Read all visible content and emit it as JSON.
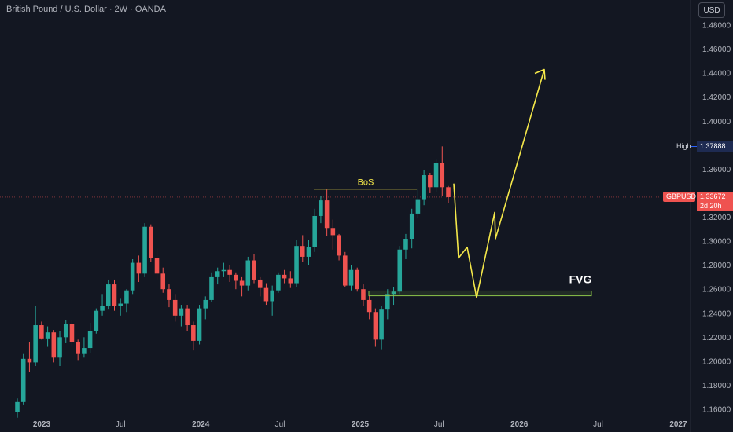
{
  "header": {
    "title": "British Pound / U.S. Dollar · 2W · OANDA",
    "currency_button": "USD"
  },
  "markers": {
    "high_label": "High",
    "high_value": "1.37888",
    "symbol_label": "GBPUSD",
    "last_price": "1.33672",
    "countdown": "2d 20h"
  },
  "annotations": {
    "bos": "BoS",
    "fvg": "FVG"
  },
  "colors": {
    "background": "#131722",
    "up": "#26a69a",
    "down": "#ef5350",
    "projection": "#f5e84a",
    "fvg_box": "#8bc34a",
    "high_tag": "#1e2b52",
    "price_tag": "#ef5350"
  },
  "chart_data": {
    "type": "candlestick",
    "title": "British Pound / U.S. Dollar · 2W · OANDA",
    "y_axis": {
      "ticks": [
        "1.48000",
        "1.46000",
        "1.44000",
        "1.42000",
        "1.40000",
        "1.36000",
        "1.32000",
        "1.30000",
        "1.28000",
        "1.26000",
        "1.24000",
        "1.22000",
        "1.20000",
        "1.18000",
        "1.16000"
      ],
      "range": [
        1.155,
        1.49
      ],
      "side": "right"
    },
    "x_axis": {
      "ticks": [
        {
          "label": "2023",
          "date": "2023-01-01"
        },
        {
          "label": "Jul",
          "date": "2023-07-01"
        },
        {
          "label": "2024",
          "date": "2024-01-01"
        },
        {
          "label": "Jul",
          "date": "2024-07-01"
        },
        {
          "label": "2025",
          "date": "2025-01-01"
        },
        {
          "label": "Jul",
          "date": "2025-07-01"
        },
        {
          "label": "2026",
          "date": "2026-01-01"
        },
        {
          "label": "Jul",
          "date": "2026-07-01"
        },
        {
          "label": "2027",
          "date": "2027-01-01"
        }
      ]
    },
    "candles": [
      [
        1.158,
        1.169,
        1.153,
        1.166
      ],
      [
        1.166,
        1.206,
        1.164,
        1.202
      ],
      [
        1.202,
        1.216,
        1.191,
        1.199
      ],
      [
        1.199,
        1.246,
        1.196,
        1.23
      ],
      [
        1.23,
        1.233,
        1.218,
        1.219
      ],
      [
        1.219,
        1.229,
        1.212,
        1.224
      ],
      [
        1.224,
        1.226,
        1.199,
        1.203
      ],
      [
        1.203,
        1.225,
        1.196,
        1.22
      ],
      [
        1.22,
        1.234,
        1.215,
        1.231
      ],
      [
        1.231,
        1.234,
        1.212,
        1.216
      ],
      [
        1.216,
        1.218,
        1.201,
        1.206
      ],
      [
        1.206,
        1.22,
        1.203,
        1.211
      ],
      [
        1.211,
        1.232,
        1.207,
        1.225
      ],
      [
        1.225,
        1.244,
        1.223,
        1.242
      ],
      [
        1.242,
        1.256,
        1.238,
        1.246
      ],
      [
        1.246,
        1.268,
        1.243,
        1.264
      ],
      [
        1.264,
        1.268,
        1.242,
        1.246
      ],
      [
        1.246,
        1.252,
        1.238,
        1.248
      ],
      [
        1.248,
        1.26,
        1.241,
        1.259
      ],
      [
        1.259,
        1.285,
        1.256,
        1.282
      ],
      [
        1.282,
        1.288,
        1.266,
        1.273
      ],
      [
        1.273,
        1.315,
        1.27,
        1.312
      ],
      [
        1.312,
        1.314,
        1.283,
        1.286
      ],
      [
        1.286,
        1.294,
        1.268,
        1.273
      ],
      [
        1.273,
        1.278,
        1.257,
        1.26
      ],
      [
        1.26,
        1.264,
        1.245,
        1.251
      ],
      [
        1.251,
        1.256,
        1.233,
        1.238
      ],
      [
        1.238,
        1.247,
        1.229,
        1.244
      ],
      [
        1.244,
        1.247,
        1.225,
        1.23
      ],
      [
        1.23,
        1.233,
        1.209,
        1.217
      ],
      [
        1.217,
        1.247,
        1.214,
        1.244
      ],
      [
        1.244,
        1.254,
        1.235,
        1.251
      ],
      [
        1.251,
        1.274,
        1.249,
        1.27
      ],
      [
        1.27,
        1.278,
        1.264,
        1.275
      ],
      [
        1.275,
        1.282,
        1.27,
        1.276
      ],
      [
        1.276,
        1.28,
        1.266,
        1.272
      ],
      [
        1.272,
        1.274,
        1.26,
        1.267
      ],
      [
        1.267,
        1.27,
        1.254,
        1.263
      ],
      [
        1.263,
        1.287,
        1.259,
        1.284
      ],
      [
        1.284,
        1.289,
        1.265,
        1.268
      ],
      [
        1.268,
        1.27,
        1.254,
        1.261
      ],
      [
        1.261,
        1.265,
        1.247,
        1.25
      ],
      [
        1.25,
        1.263,
        1.238,
        1.259
      ],
      [
        1.259,
        1.274,
        1.257,
        1.272
      ],
      [
        1.272,
        1.276,
        1.265,
        1.269
      ],
      [
        1.269,
        1.275,
        1.261,
        1.265
      ],
      [
        1.265,
        1.301,
        1.262,
        1.296
      ],
      [
        1.296,
        1.305,
        1.283,
        1.287
      ],
      [
        1.287,
        1.301,
        1.28,
        1.295
      ],
      [
        1.295,
        1.327,
        1.291,
        1.321
      ],
      [
        1.321,
        1.338,
        1.315,
        1.334
      ],
      [
        1.334,
        1.343,
        1.304,
        1.311
      ],
      [
        1.311,
        1.318,
        1.293,
        1.305
      ],
      [
        1.305,
        1.306,
        1.284,
        1.288
      ],
      [
        1.288,
        1.291,
        1.262,
        1.263
      ],
      [
        1.263,
        1.28,
        1.259,
        1.276
      ],
      [
        1.276,
        1.278,
        1.258,
        1.26
      ],
      [
        1.26,
        1.264,
        1.246,
        1.251
      ],
      [
        1.251,
        1.255,
        1.235,
        1.241
      ],
      [
        1.241,
        1.244,
        1.212,
        1.218
      ],
      [
        1.218,
        1.246,
        1.21,
        1.243
      ],
      [
        1.243,
        1.26,
        1.235,
        1.256
      ],
      [
        1.256,
        1.262,
        1.247,
        1.258
      ],
      [
        1.258,
        1.296,
        1.256,
        1.293
      ],
      [
        1.293,
        1.306,
        1.285,
        1.302
      ],
      [
        1.302,
        1.327,
        1.294,
        1.323
      ],
      [
        1.323,
        1.344,
        1.319,
        1.335
      ],
      [
        1.335,
        1.359,
        1.33,
        1.355
      ],
      [
        1.355,
        1.357,
        1.34,
        1.345
      ],
      [
        1.345,
        1.368,
        1.341,
        1.365
      ],
      [
        1.365,
        1.379,
        1.338,
        1.345
      ],
      [
        1.345,
        1.346,
        1.332,
        1.3367
      ]
    ],
    "last_price": 1.33672,
    "high": 1.37888,
    "annotations": [
      {
        "label": "BoS",
        "type": "horizontal-line",
        "price": 1.3434
      },
      {
        "label": "FVG",
        "type": "zone",
        "from": 1.2545,
        "to": 1.2585
      },
      {
        "type": "projection-path",
        "prices": [
          1.348,
          1.286,
          1.295,
          1.253,
          1.324,
          1.302,
          1.443
        ]
      }
    ],
    "grid": false,
    "legend": "none"
  }
}
